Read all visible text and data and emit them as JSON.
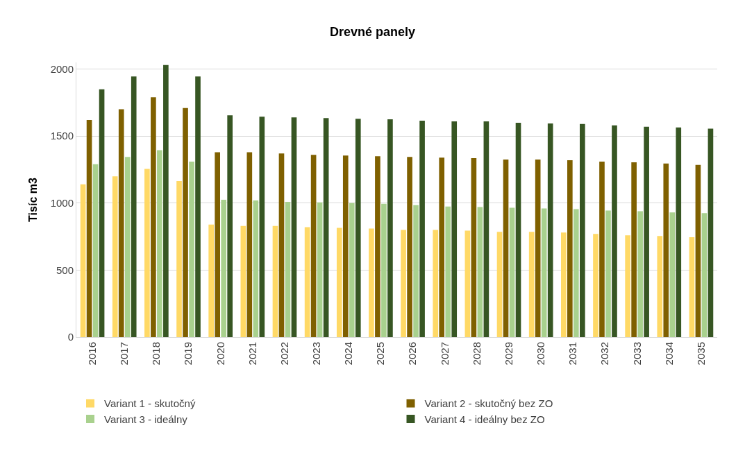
{
  "chart_data": {
    "type": "bar",
    "title": "Drevné panely",
    "ylabel": "Tisíc m3",
    "categories": [
      "2016",
      "2017",
      "2018",
      "2019",
      "2020",
      "2021",
      "2022",
      "2023",
      "2024",
      "2025",
      "2026",
      "2027",
      "2028",
      "2029",
      "2030",
      "2031",
      "2032",
      "2033",
      "2034",
      "2035"
    ],
    "series": [
      {
        "name": "Variant 1 - skutočný",
        "color": "#ffd966",
        "values": [
          1140,
          1200,
          1255,
          1165,
          840,
          830,
          830,
          820,
          815,
          810,
          800,
          800,
          795,
          785,
          785,
          780,
          770,
          760,
          755,
          745
        ]
      },
      {
        "name": "Variant 2 - skutočný bez ZO",
        "color": "#7f6000",
        "values": [
          1620,
          1700,
          1790,
          1710,
          1380,
          1380,
          1370,
          1360,
          1355,
          1350,
          1345,
          1340,
          1335,
          1325,
          1325,
          1320,
          1310,
          1305,
          1295,
          1285
        ]
      },
      {
        "name": "Variant 3 - ideálny",
        "color": "#a9d18e",
        "values": [
          1290,
          1345,
          1395,
          1310,
          1025,
          1020,
          1010,
          1005,
          1000,
          995,
          985,
          975,
          970,
          965,
          960,
          955,
          945,
          940,
          930,
          925
        ]
      },
      {
        "name": "Variant 4 - ideálny bez ZO",
        "color": "#375623",
        "values": [
          1850,
          1945,
          2030,
          1945,
          1655,
          1645,
          1640,
          1635,
          1630,
          1625,
          1615,
          1610,
          1610,
          1600,
          1595,
          1590,
          1580,
          1570,
          1565,
          1555
        ]
      }
    ],
    "ylim": [
      0,
      2050
    ],
    "yticks": [
      0,
      500,
      1000,
      1500,
      2000
    ],
    "grid": "y",
    "legend": "bottom"
  }
}
